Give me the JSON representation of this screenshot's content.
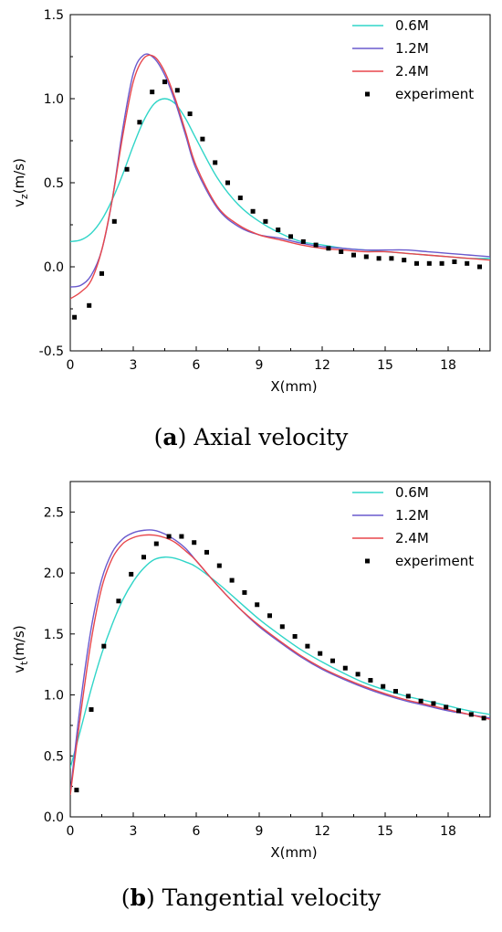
{
  "chart_data": [
    {
      "type": "line",
      "ylabel_main": "v",
      "ylabel_sub": "z",
      "ylabel_unit": "(m/s)",
      "xlabel": "X(mm)",
      "xlim": [
        0,
        20
      ],
      "ylim": [
        -0.5,
        1.5
      ],
      "xticks": [
        0,
        3,
        6,
        9,
        12,
        15,
        18
      ],
      "yticks": [
        -0.5,
        0.0,
        0.5,
        1.0,
        1.5
      ],
      "ytick_labels": [
        "-0.5",
        "0.0",
        "0.5",
        "1.0",
        "1.5"
      ],
      "legend_position": "top-right",
      "caption": {
        "open": "(",
        "letter": "a",
        "close": ")",
        "text": " Axial velocity"
      },
      "series": [
        {
          "name": "0.6M",
          "color": "#30d5c8",
          "style": "line",
          "x": [
            0,
            0.5,
            1,
            1.5,
            2,
            2.5,
            3,
            3.5,
            4,
            4.5,
            5,
            5.5,
            6,
            7,
            8,
            9,
            10,
            11,
            12,
            13,
            14,
            15,
            16,
            17,
            18,
            19,
            20
          ],
          "y": [
            0.15,
            0.16,
            0.2,
            0.28,
            0.4,
            0.55,
            0.72,
            0.87,
            0.97,
            1.0,
            0.97,
            0.88,
            0.76,
            0.53,
            0.37,
            0.27,
            0.2,
            0.15,
            0.13,
            0.11,
            0.1,
            0.09,
            0.08,
            0.07,
            0.06,
            0.05,
            0.05
          ]
        },
        {
          "name": "1.2M",
          "color": "#6a5acd",
          "style": "line",
          "x": [
            0,
            0.5,
            1,
            1.5,
            2,
            2.5,
            3,
            3.5,
            4,
            4.5,
            5,
            5.5,
            6,
            7,
            8,
            9,
            10,
            11,
            12,
            13,
            14,
            15,
            16,
            17,
            18,
            19,
            20
          ],
          "y": [
            -0.12,
            -0.11,
            -0.05,
            0.1,
            0.4,
            0.82,
            1.15,
            1.26,
            1.24,
            1.14,
            0.98,
            0.78,
            0.58,
            0.35,
            0.24,
            0.19,
            0.17,
            0.14,
            0.12,
            0.11,
            0.1,
            0.1,
            0.1,
            0.09,
            0.08,
            0.07,
            0.06
          ]
        },
        {
          "name": "2.4M",
          "color": "#e8474c",
          "style": "line",
          "x": [
            0,
            0.5,
            1,
            1.5,
            2,
            2.5,
            3,
            3.5,
            4,
            4.5,
            5,
            5.5,
            6,
            7,
            8,
            9,
            10,
            11,
            12,
            13,
            14,
            15,
            16,
            17,
            18,
            19,
            20
          ],
          "y": [
            -0.19,
            -0.15,
            -0.08,
            0.1,
            0.4,
            0.78,
            1.1,
            1.24,
            1.25,
            1.16,
            1.0,
            0.8,
            0.6,
            0.36,
            0.25,
            0.19,
            0.16,
            0.13,
            0.11,
            0.1,
            0.09,
            0.09,
            0.08,
            0.07,
            0.06,
            0.05,
            0.04
          ]
        },
        {
          "name": "experiment",
          "color": "#000000",
          "style": "marker",
          "x": [
            0.2,
            0.9,
            1.5,
            2.1,
            2.7,
            3.3,
            3.9,
            4.5,
            5.1,
            5.7,
            6.3,
            6.9,
            7.5,
            8.1,
            8.7,
            9.3,
            9.9,
            10.5,
            11.1,
            11.7,
            12.3,
            12.9,
            13.5,
            14.1,
            14.7,
            15.3,
            15.9,
            16.5,
            17.1,
            17.7,
            18.3,
            18.9,
            19.5
          ],
          "y": [
            -0.3,
            -0.23,
            -0.04,
            0.27,
            0.58,
            0.86,
            1.04,
            1.1,
            1.05,
            0.91,
            0.76,
            0.62,
            0.5,
            0.41,
            0.33,
            0.27,
            0.22,
            0.18,
            0.15,
            0.13,
            0.11,
            0.09,
            0.07,
            0.06,
            0.05,
            0.05,
            0.04,
            0.02,
            0.02,
            0.02,
            0.03,
            0.02,
            0.0
          ]
        }
      ]
    },
    {
      "type": "line",
      "ylabel_main": "v",
      "ylabel_sub": "t",
      "ylabel_unit": "(m/s)",
      "xlabel": "X(mm)",
      "xlim": [
        0,
        20
      ],
      "ylim": [
        0.0,
        2.75
      ],
      "xticks": [
        0,
        3,
        6,
        9,
        12,
        15,
        18
      ],
      "yticks": [
        0.0,
        0.5,
        1.0,
        1.5,
        2.0,
        2.5
      ],
      "ytick_labels": [
        "0.0",
        "0.5",
        "1.0",
        "1.5",
        "2.0",
        "2.5"
      ],
      "legend_position": "top-right",
      "caption": {
        "open": "(",
        "letter": "b",
        "close": ")",
        "text": " Tangential velocity"
      },
      "series": [
        {
          "name": "0.6M",
          "color": "#30d5c8",
          "style": "line",
          "x": [
            0,
            0.5,
            1,
            1.5,
            2,
            2.5,
            3,
            3.5,
            4,
            4.5,
            5,
            5.5,
            6,
            7,
            8,
            9,
            10,
            11,
            12,
            13,
            14,
            15,
            16,
            17,
            18,
            19,
            20
          ],
          "y": [
            0.4,
            0.72,
            1.05,
            1.34,
            1.58,
            1.78,
            1.93,
            2.04,
            2.11,
            2.13,
            2.12,
            2.09,
            2.05,
            1.92,
            1.77,
            1.62,
            1.49,
            1.37,
            1.27,
            1.18,
            1.1,
            1.04,
            0.99,
            0.95,
            0.91,
            0.87,
            0.84
          ]
        },
        {
          "name": "1.2M",
          "color": "#6a5acd",
          "style": "line",
          "x": [
            0,
            0.5,
            1,
            1.5,
            2,
            2.5,
            3,
            3.5,
            4,
            4.5,
            5,
            5.5,
            6,
            7,
            8,
            9,
            10,
            11,
            12,
            13,
            14,
            15,
            16,
            17,
            18,
            19,
            20
          ],
          "y": [
            0.2,
            0.95,
            1.55,
            1.95,
            2.17,
            2.28,
            2.33,
            2.35,
            2.35,
            2.32,
            2.27,
            2.2,
            2.1,
            1.9,
            1.72,
            1.56,
            1.43,
            1.31,
            1.21,
            1.13,
            1.06,
            1.0,
            0.95,
            0.91,
            0.87,
            0.84,
            0.81
          ]
        },
        {
          "name": "2.4M",
          "color": "#e8474c",
          "style": "line",
          "x": [
            0,
            0.5,
            1,
            1.5,
            2,
            2.5,
            3,
            3.5,
            4,
            4.5,
            5,
            5.5,
            6,
            7,
            8,
            9,
            10,
            11,
            12,
            13,
            14,
            15,
            16,
            17,
            18,
            19,
            20
          ],
          "y": [
            0.18,
            0.85,
            1.45,
            1.88,
            2.12,
            2.24,
            2.29,
            2.31,
            2.31,
            2.29,
            2.25,
            2.18,
            2.1,
            1.9,
            1.72,
            1.57,
            1.44,
            1.32,
            1.22,
            1.14,
            1.07,
            1.01,
            0.96,
            0.92,
            0.88,
            0.84,
            0.8
          ]
        },
        {
          "name": "experiment",
          "color": "#000000",
          "style": "marker",
          "x": [
            0.3,
            1.0,
            1.6,
            2.3,
            2.9,
            3.5,
            4.1,
            4.7,
            5.3,
            5.9,
            6.5,
            7.1,
            7.7,
            8.3,
            8.9,
            9.5,
            10.1,
            10.7,
            11.3,
            11.9,
            12.5,
            13.1,
            13.7,
            14.3,
            14.9,
            15.5,
            16.1,
            16.7,
            17.3,
            17.9,
            18.5,
            19.1,
            19.7
          ],
          "y": [
            0.22,
            0.88,
            1.4,
            1.77,
            1.99,
            2.13,
            2.24,
            2.3,
            2.3,
            2.25,
            2.17,
            2.06,
            1.94,
            1.84,
            1.74,
            1.65,
            1.56,
            1.48,
            1.4,
            1.34,
            1.28,
            1.22,
            1.17,
            1.12,
            1.07,
            1.03,
            0.99,
            0.95,
            0.93,
            0.9,
            0.87,
            0.84,
            0.81
          ]
        }
      ]
    }
  ]
}
